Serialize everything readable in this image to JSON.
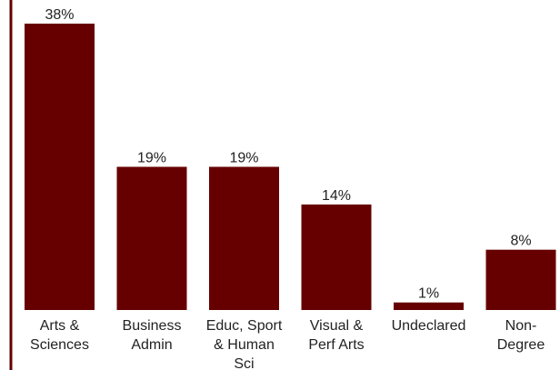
{
  "chart_data": {
    "type": "bar",
    "categories": [
      [
        "Arts &",
        "Sciences"
      ],
      [
        "Business",
        "Admin"
      ],
      [
        "Educ, Sport",
        "& Human",
        "Sci"
      ],
      [
        "Visual &",
        "Perf Arts"
      ],
      [
        "Undeclared"
      ],
      [
        "Non-",
        "Degree"
      ]
    ],
    "values": [
      38,
      19,
      19,
      14,
      1,
      8
    ],
    "value_labels": [
      "38%",
      "19%",
      "19%",
      "14%",
      "1%",
      "8%"
    ],
    "ylim": [
      0,
      38
    ],
    "title": "",
    "xlabel": "",
    "ylabel": "",
    "grid": false,
    "bar_color": "#660000",
    "axis_color": "#660000"
  }
}
